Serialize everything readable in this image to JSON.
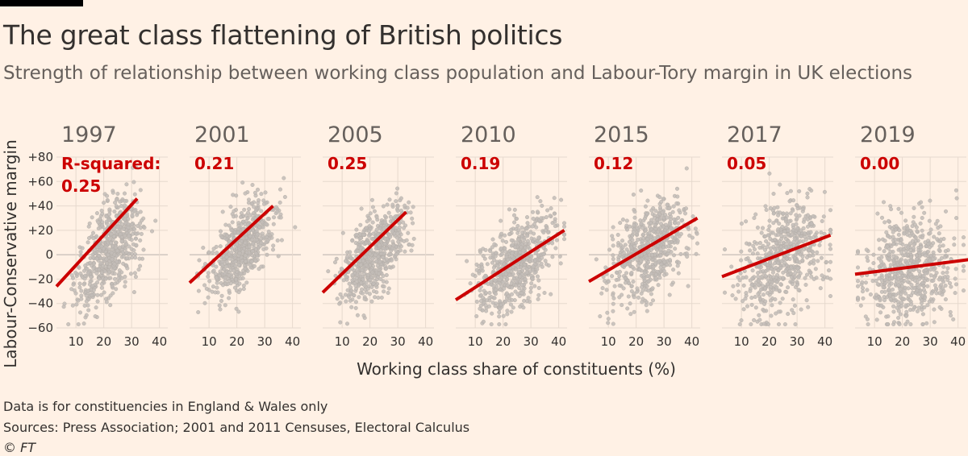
{
  "header": {
    "title": "The great class flattening of British politics",
    "subtitle": "Strength of relationship between working class population and Labour-Tory margin in UK elections"
  },
  "footer": {
    "note": "Data is for constituencies in England & Wales only",
    "sources": "Sources: Press Association; 2001 and 2011 Censuses, Electoral Calculus",
    "copyright": "© FT"
  },
  "colors": {
    "background": "#fff1e5",
    "dots": "#c2bcb7",
    "regression_line": "#cc0000",
    "year_label": "#66605c",
    "text": "#33302e"
  },
  "chart_data": {
    "type": "scatter",
    "layout": "small-multiples",
    "ylabel": "Labour-Conservative margin",
    "xlabel": "Working class share of constituents (%)",
    "ylim": [
      -60,
      80
    ],
    "yticks": [
      -60,
      -40,
      -20,
      0,
      20,
      40,
      60,
      80
    ],
    "ytick_labels": [
      "−60",
      "−40",
      "−20",
      "0",
      "+20",
      "+40",
      "+60",
      "+80"
    ],
    "xlim": [
      3,
      43
    ],
    "xticks": [
      10,
      20,
      30,
      40
    ],
    "xtick_labels": [
      "10",
      "20",
      "30",
      "40"
    ],
    "r_squared_prefix": "R-squared:",
    "grid": true,
    "panels": [
      {
        "year": "1997",
        "r_squared": "0.25",
        "trend": [
          [
            3,
            -26
          ],
          [
            32,
            46
          ]
        ],
        "cloud": {
          "cx": 22,
          "cy": 4,
          "sx": 6,
          "sy": 24,
          "slope": 2.5,
          "n": 600
        }
      },
      {
        "year": "2001",
        "r_squared": "0.21",
        "trend": [
          [
            3,
            -23
          ],
          [
            33,
            40
          ]
        ],
        "cloud": {
          "cx": 22,
          "cy": 6,
          "sx": 6,
          "sy": 22,
          "slope": 2.1,
          "n": 600
        }
      },
      {
        "year": "2005",
        "r_squared": "0.25",
        "trend": [
          [
            3,
            -31
          ],
          [
            33,
            35
          ]
        ],
        "cloud": {
          "cx": 22,
          "cy": 2,
          "sx": 6,
          "sy": 22,
          "slope": 2.2,
          "n": 600
        }
      },
      {
        "year": "2010",
        "r_squared": "0.19",
        "trend": [
          [
            3,
            -37
          ],
          [
            42,
            20
          ]
        ],
        "cloud": {
          "cx": 25,
          "cy": -7,
          "sx": 7,
          "sy": 24,
          "slope": 1.5,
          "n": 600
        }
      },
      {
        "year": "2015",
        "r_squared": "0.12",
        "trend": [
          [
            3,
            -22
          ],
          [
            42,
            30
          ]
        ],
        "cloud": {
          "cx": 25,
          "cy": 4,
          "sx": 7,
          "sy": 26,
          "slope": 1.3,
          "n": 600
        }
      },
      {
        "year": "2017",
        "r_squared": "0.05",
        "trend": [
          [
            3,
            -18
          ],
          [
            42,
            16
          ]
        ],
        "cloud": {
          "cx": 25,
          "cy": 0,
          "sx": 8,
          "sy": 30,
          "slope": 0.9,
          "n": 600
        }
      },
      {
        "year": "2019",
        "r_squared": "0.00",
        "trend": [
          [
            3,
            -16
          ],
          [
            44,
            -4
          ]
        ],
        "cloud": {
          "cx": 22,
          "cy": -10,
          "sx": 8,
          "sy": 30,
          "slope": 0.3,
          "n": 600
        }
      }
    ]
  }
}
